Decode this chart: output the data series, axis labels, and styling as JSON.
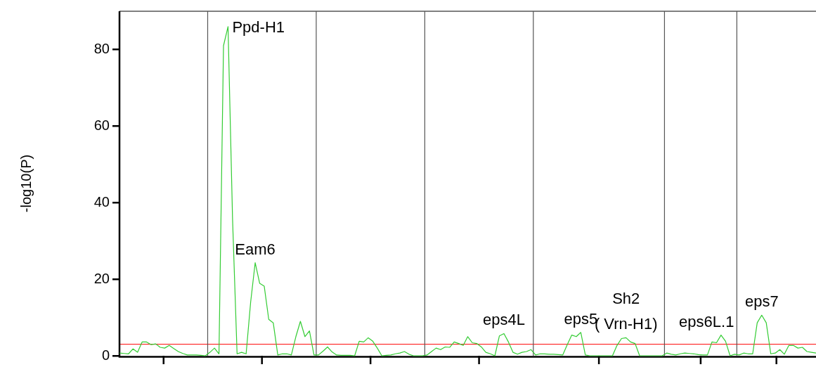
{
  "chart_data": {
    "type": "line",
    "ylabel": "-log10(P)",
    "color": "#33cc33",
    "marker": "none",
    "tick_labels": "y",
    "ylim": [
      0,
      90
    ],
    "yticks": [
      0,
      20,
      40,
      60,
      80
    ],
    "categories": [
      null,
      null,
      null,
      null,
      null,
      null,
      null,
      null,
      null,
      null,
      null,
      null,
      null,
      null,
      null,
      null,
      null,
      null,
      null,
      null,
      null,
      null,
      null,
      null,
      null,
      null,
      null,
      null,
      null,
      null,
      null,
      null,
      null,
      null,
      null,
      null,
      null,
      null,
      null,
      null,
      null,
      null,
      null,
      null,
      null,
      null,
      null,
      null,
      null,
      null,
      null,
      null,
      null,
      null,
      null,
      null,
      null,
      null,
      null,
      null,
      null,
      null,
      null,
      null,
      null,
      null,
      null,
      null,
      null,
      null,
      null,
      null,
      null,
      null,
      null,
      null,
      null,
      null,
      null,
      null,
      null,
      null,
      null,
      null,
      null,
      null,
      null,
      null,
      null,
      null,
      null,
      null,
      null,
      null,
      null,
      null,
      null,
      null,
      null,
      null,
      null,
      null,
      null,
      null,
      null,
      null,
      null,
      null,
      null,
      null,
      null,
      null,
      null,
      null,
      null,
      null,
      null,
      null,
      null,
      null,
      null,
      null,
      null,
      null,
      null,
      null,
      null,
      null,
      null,
      null,
      null,
      null,
      null,
      null,
      null,
      null,
      null,
      null,
      null,
      null,
      null,
      null,
      null,
      null,
      null,
      null,
      null,
      null,
      null,
      null,
      null,
      null,
      null,
      null,
      null
    ],
    "values": [
      0.7,
      0.6,
      0.5,
      1.8,
      0.9,
      3.6,
      3.6,
      2.9,
      3.1,
      2.2,
      2.0,
      2.7,
      1.9,
      1.1,
      0.6,
      0.2,
      0.2,
      0.2,
      0.1,
      0,
      0.9,
      2.0,
      0.5,
      81,
      86,
      35.7,
      0.5,
      0.9,
      0.5,
      14,
      24.3,
      18.9,
      18.2,
      9.5,
      8.6,
      0.2,
      0.5,
      0.5,
      0.2,
      5.0,
      9.0,
      5.0,
      6.5,
      0.2,
      0.2,
      1.2,
      2.3,
      1.0,
      0.2,
      0.1,
      0.1,
      0.1,
      0,
      3.8,
      3.6,
      4.7,
      3.8,
      2.0,
      0,
      0.1,
      0.2,
      0.5,
      0.7,
      1.1,
      0.4,
      0,
      0,
      0,
      0.2,
      1.1,
      2.0,
      1.6,
      2.3,
      2.2,
      3.6,
      3.2,
      2.7,
      5.0,
      3.4,
      3.2,
      2.3,
      0.9,
      0.5,
      0,
      5.2,
      5.8,
      3.6,
      0.9,
      0.4,
      0.9,
      1.1,
      1.6,
      0.2,
      0.5,
      0.5,
      0.4,
      0.4,
      0.3,
      0.2,
      2.9,
      5.4,
      5.0,
      6.1,
      0.2,
      0,
      0,
      0,
      0,
      0,
      0,
      2.7,
      4.5,
      4.7,
      3.6,
      3.2,
      0,
      0,
      0,
      0,
      0,
      0,
      0.7,
      0.4,
      0.2,
      0.5,
      0.7,
      0.6,
      0.5,
      0.3,
      0.2,
      0.2,
      3.6,
      3.4,
      5.4,
      3.8,
      0,
      0.4,
      0.2,
      0.7,
      0.5,
      0.5,
      8.6,
      10.6,
      8.6,
      0.5,
      0.7,
      1.6,
      0.4,
      2.7,
      2.7,
      2.0,
      2.2,
      1.1,
      0.9,
      0.7
    ],
    "ref_lines": [
      {
        "axis": "y",
        "value": 3,
        "color": "#ff0000"
      }
    ],
    "annotations": [
      "Ppd-H1",
      {
        "text": "Eam6",
        "y": 24.3
      },
      {
        "text": "eps4L",
        "y": 5.8
      },
      {
        "text": "eps5",
        "y": 6.1
      },
      {
        "text": "Sh2",
        "y": 4.7
      },
      {
        "text": "( Vrn-H1)",
        "y": 4.7
      },
      "eps6L.1",
      {
        "text": "eps7",
        "y": 10.6
      }
    ]
  }
}
